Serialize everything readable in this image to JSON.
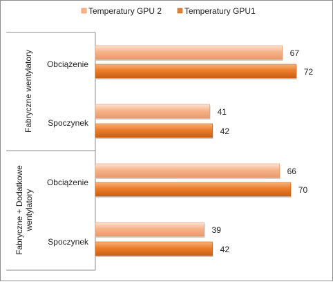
{
  "chart_data": {
    "type": "bar",
    "orientation": "horizontal",
    "title": "",
    "xlabel": "",
    "ylabel": "",
    "xlim": [
      0,
      80
    ],
    "grid": false,
    "legend_position": "top",
    "data_labels": true,
    "groups": [
      {
        "label": "Fabryczne wentylatory",
        "categories": [
          "Obciążenie",
          "Spoczynek"
        ]
      },
      {
        "label": "Fabryczne + Dodatkowe wentylatory",
        "categories": [
          "Obciążenie",
          "Spoczynek"
        ]
      }
    ],
    "categories": [
      "Fabryczne wentylatory / Obciążenie",
      "Fabryczne wentylatory / Spoczynek",
      "Fabryczne + Dodatkowe wentylatory / Obciążenie",
      "Fabryczne + Dodatkowe wentylatory / Spoczynek"
    ],
    "series": [
      {
        "name": "Temperatury GPU 2",
        "values": [
          67,
          41,
          66,
          39
        ],
        "color": "#f7b48a"
      },
      {
        "name": "Temperatury GPU1",
        "values": [
          72,
          42,
          70,
          42
        ],
        "color": "#ec7d2a"
      }
    ]
  }
}
